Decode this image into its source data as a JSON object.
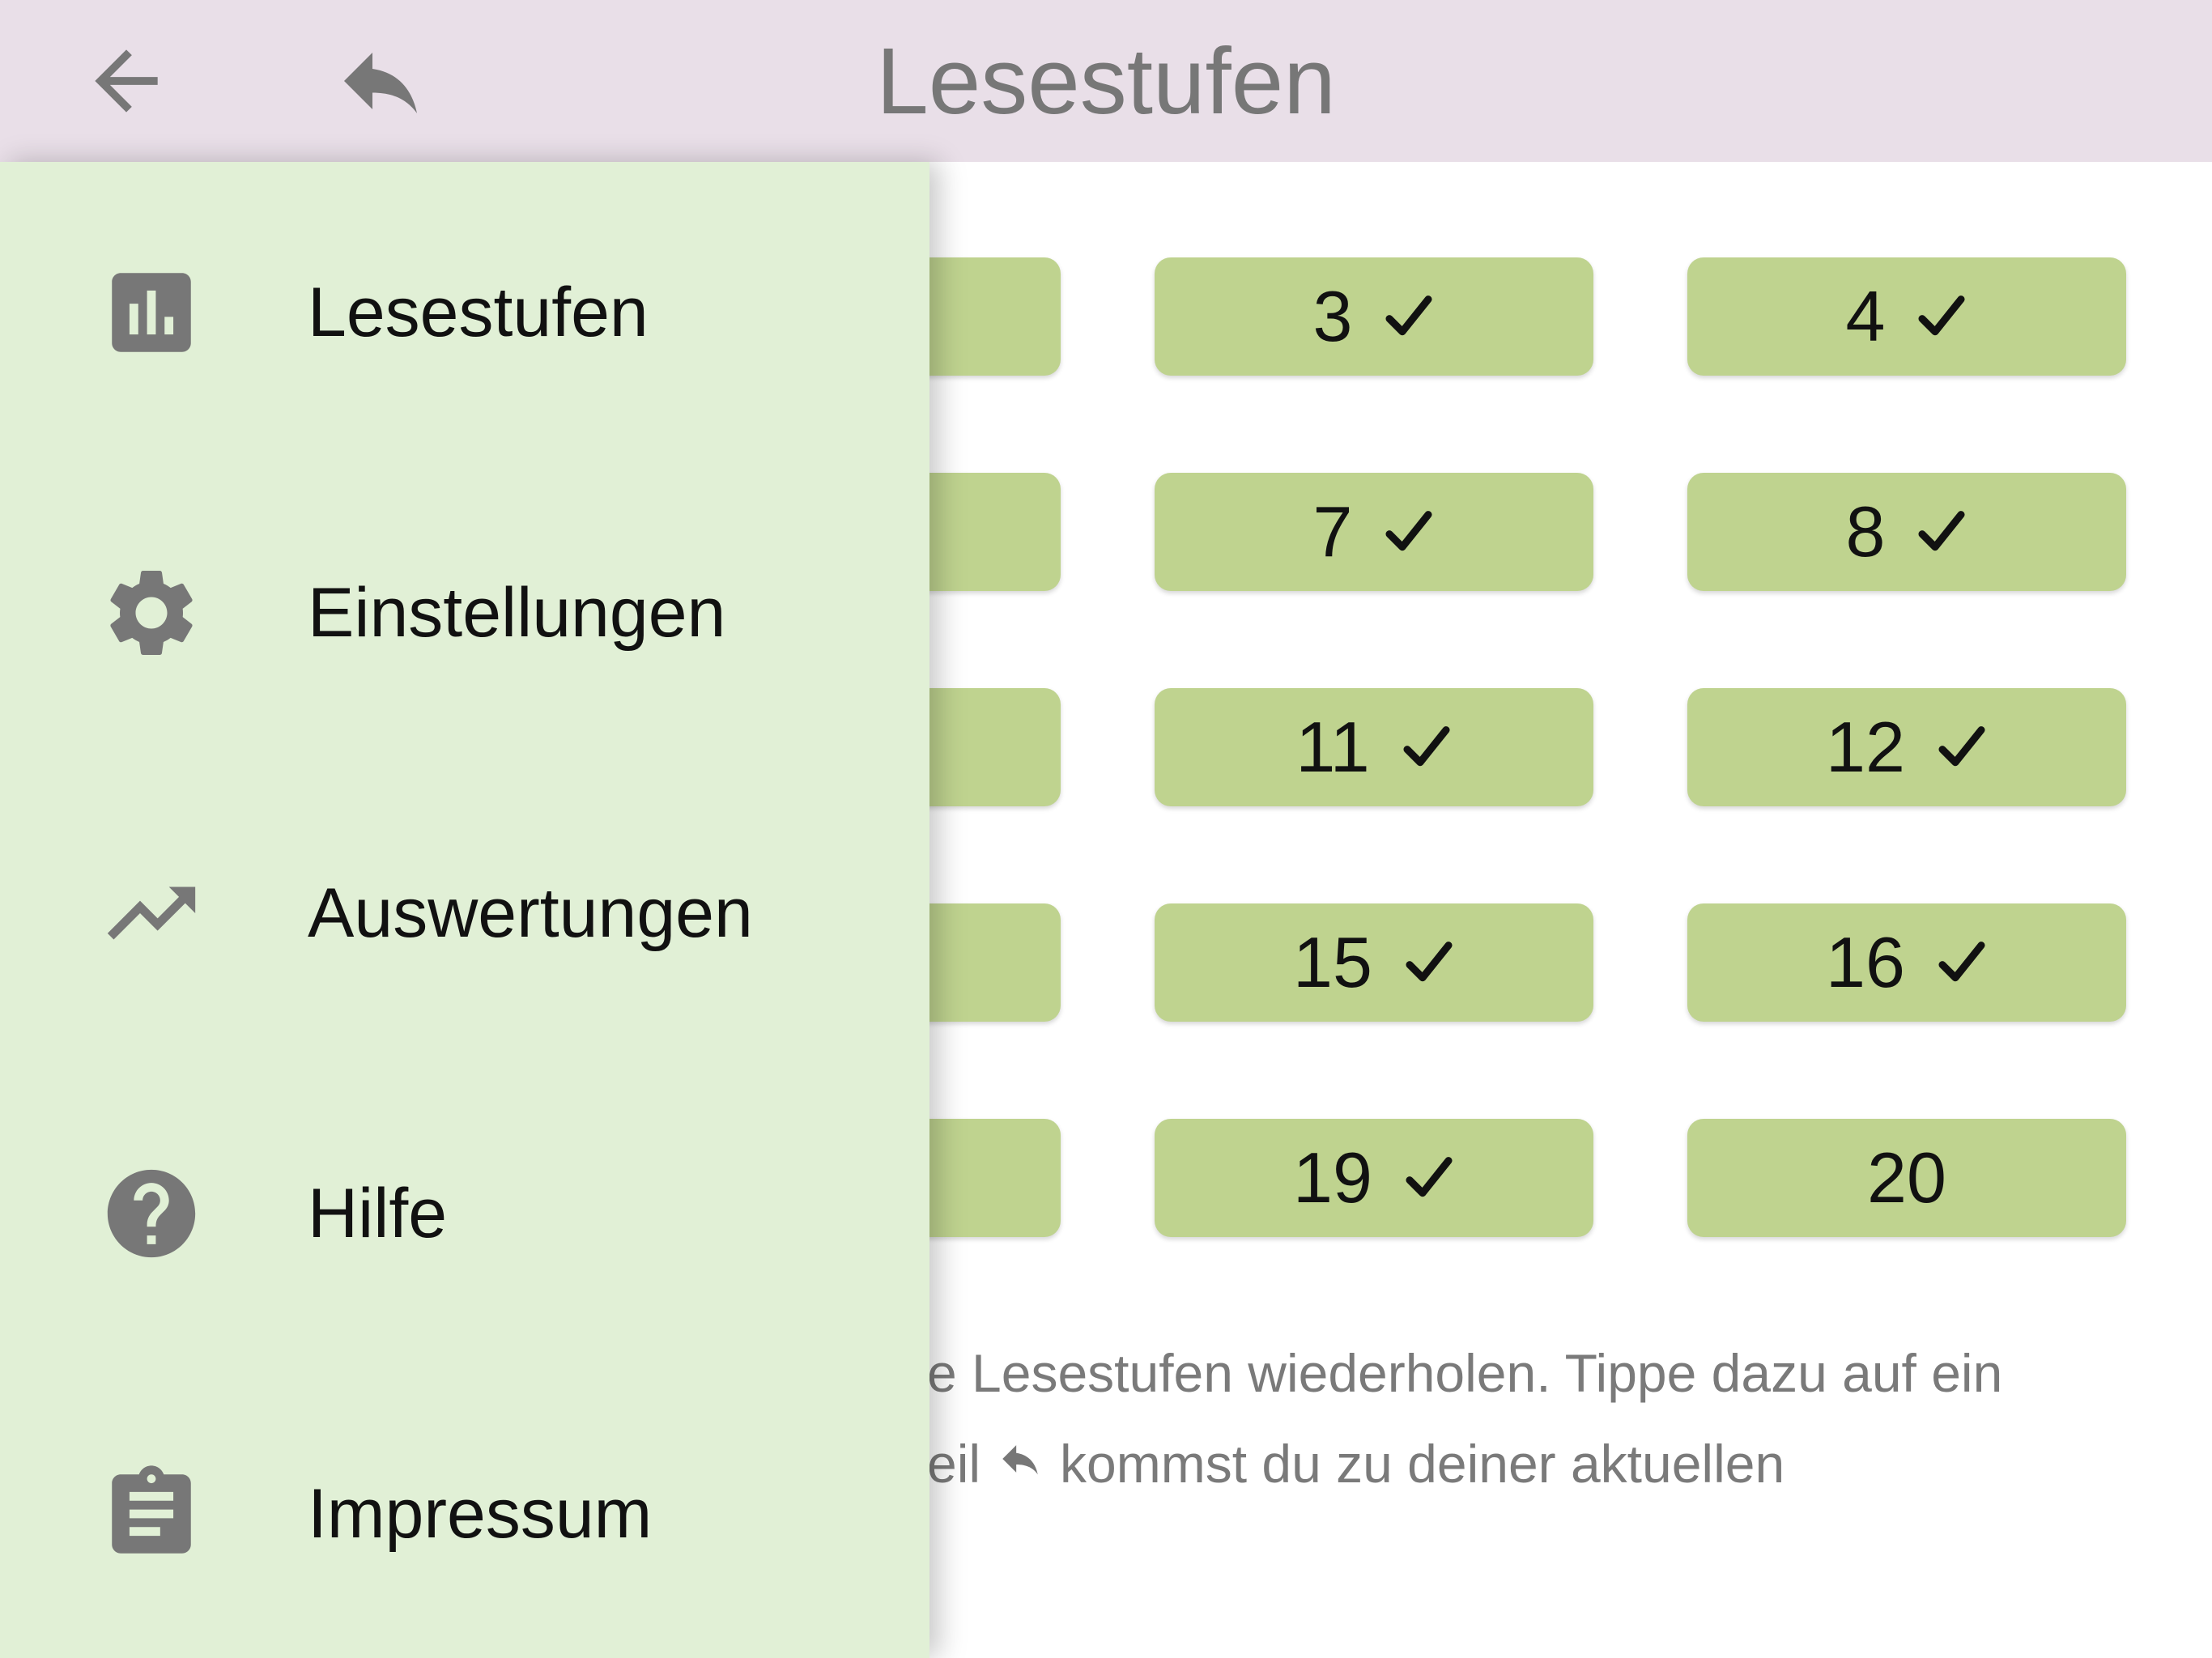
{
  "header": {
    "title": "Lesestufen",
    "back_icon": "arrow-left-icon",
    "undo_icon": "reply-arrow-icon"
  },
  "levels": [
    {
      "label": "",
      "completed": false
    },
    {
      "label": "3",
      "completed": true
    },
    {
      "label": "4",
      "completed": true
    },
    {
      "label": "",
      "completed": false
    },
    {
      "label": "7",
      "completed": true
    },
    {
      "label": "8",
      "completed": true
    },
    {
      "label": "",
      "completed": false
    },
    {
      "label": "11",
      "completed": true
    },
    {
      "label": "12",
      "completed": true
    },
    {
      "label": "",
      "completed": false
    },
    {
      "label": "15",
      "completed": true
    },
    {
      "label": "16",
      "completed": true
    },
    {
      "label": "",
      "completed": false
    },
    {
      "label": "19",
      "completed": true
    },
    {
      "label": "20",
      "completed": false
    }
  ],
  "help": {
    "line1": "e Lesestufen wiederholen. Tippe dazu auf ein",
    "line2_start": "eil",
    "line2_end": "kommst du zu deiner aktuellen"
  },
  "drawer": {
    "items": [
      {
        "label": "Lesestufen",
        "icon": "bar-chart-icon"
      },
      {
        "label": "Einstellungen",
        "icon": "gear-icon"
      },
      {
        "label": "Auswertungen",
        "icon": "trending-up-icon"
      },
      {
        "label": "Hilfe",
        "icon": "help-circle-icon"
      },
      {
        "label": "Impressum",
        "icon": "clipboard-icon"
      }
    ]
  },
  "colors": {
    "header_bg": "#e9dfe8",
    "drawer_bg": "#e1f0d6",
    "level_button": "#bfd38f",
    "icon_gray": "#777777"
  }
}
